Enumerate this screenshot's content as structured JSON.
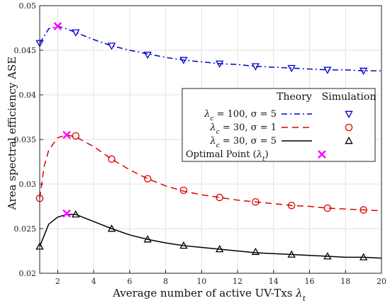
{
  "chart_data": {
    "type": "line",
    "xlabel": "Average number of active UV-Txs λ_t",
    "ylabel": "Area spectral efficiency ASE",
    "xlim": [
      1,
      20
    ],
    "ylim": [
      0.02,
      0.05
    ],
    "xticks": [
      2,
      4,
      6,
      8,
      10,
      12,
      14,
      16,
      18,
      20
    ],
    "yticks": [
      0.02,
      0.025,
      0.03,
      0.035,
      0.04,
      0.045,
      0.05
    ],
    "xtick_labels": [
      "2",
      "4",
      "6",
      "8",
      "10",
      "12",
      "14",
      "16",
      "18",
      "20"
    ],
    "ytick_labels": [
      "0.02",
      "0.025",
      "0.03",
      "0.035",
      "0.04",
      "0.045",
      "0.05"
    ],
    "grid": true,
    "legend_position": "right",
    "legend": {
      "header_theory": "Theory",
      "header_simulation": "Simulation",
      "entries": [
        "λ_c = 100, σ = 5",
        "λ_c = 30, σ = 1",
        "λ_c = 30, σ = 5",
        "Optimal Point (λ_t)"
      ]
    },
    "series": [
      {
        "name": "λ_c = 100, σ = 5",
        "color": "#0000cc",
        "line_style": "dashdot",
        "marker": "triangle-down",
        "theory": {
          "x": [
            1,
            1.5,
            2,
            2.5,
            3,
            4,
            5,
            6,
            7,
            8,
            9,
            10,
            11,
            12,
            13,
            14,
            15,
            16,
            17,
            18,
            19,
            20
          ],
          "y": [
            0.0458,
            0.0474,
            0.0477,
            0.0474,
            0.047,
            0.0462,
            0.0455,
            0.045,
            0.0446,
            0.0442,
            0.0439,
            0.0437,
            0.0435,
            0.0434,
            0.0432,
            0.0431,
            0.043,
            0.0429,
            0.0428,
            0.0428,
            0.0427,
            0.0427
          ]
        },
        "simulation": {
          "x": [
            1,
            3,
            5,
            7,
            9,
            11,
            13,
            15,
            17,
            19
          ],
          "y": [
            0.0458,
            0.047,
            0.0455,
            0.0445,
            0.0439,
            0.0435,
            0.0432,
            0.043,
            0.0428,
            0.0427
          ]
        },
        "optimal": {
          "x": 2,
          "y": 0.0477
        }
      },
      {
        "name": "λ_c = 30, σ = 1",
        "color": "#dd0000",
        "line_style": "dashed",
        "marker": "circle",
        "theory": {
          "x": [
            1,
            1.25,
            1.5,
            2,
            2.5,
            3,
            4,
            5,
            6,
            7,
            8,
            9,
            10,
            11,
            12,
            13,
            14,
            15,
            16,
            17,
            18,
            19,
            20
          ],
          "y": [
            0.0284,
            0.032,
            0.0338,
            0.0352,
            0.0355,
            0.0353,
            0.0342,
            0.0328,
            0.0316,
            0.0306,
            0.0298,
            0.0292,
            0.0288,
            0.0285,
            0.0282,
            0.028,
            0.0278,
            0.0276,
            0.0275,
            0.0273,
            0.0272,
            0.0271,
            0.027
          ]
        },
        "simulation": {
          "x": [
            1,
            3,
            5,
            7,
            9,
            11,
            13,
            15,
            17,
            19
          ],
          "y": [
            0.0284,
            0.0354,
            0.0328,
            0.0306,
            0.0293,
            0.0285,
            0.028,
            0.0276,
            0.0273,
            0.0271
          ]
        },
        "optimal": {
          "x": 2.5,
          "y": 0.0355
        }
      },
      {
        "name": "λ_c = 30, σ = 5",
        "color": "#000000",
        "line_style": "solid",
        "marker": "triangle-up",
        "theory": {
          "x": [
            1,
            1.5,
            2,
            2.5,
            3,
            4,
            5,
            6,
            7,
            8,
            9,
            10,
            11,
            12,
            13,
            14,
            15,
            16,
            17,
            18,
            19,
            20
          ],
          "y": [
            0.023,
            0.0255,
            0.0263,
            0.0266,
            0.0266,
            0.0258,
            0.025,
            0.0243,
            0.0238,
            0.0234,
            0.0231,
            0.0229,
            0.0227,
            0.0225,
            0.0223,
            0.0222,
            0.0221,
            0.022,
            0.0219,
            0.0218,
            0.0218,
            0.0217
          ]
        },
        "simulation": {
          "x": [
            1,
            3,
            5,
            7,
            9,
            11,
            13,
            15,
            17,
            19
          ],
          "y": [
            0.023,
            0.0266,
            0.025,
            0.0238,
            0.0231,
            0.0227,
            0.0224,
            0.0221,
            0.0219,
            0.0218
          ]
        },
        "optimal": {
          "x": 2.5,
          "y": 0.0267
        }
      }
    ],
    "optimal_marker": {
      "color": "#ff00ff",
      "marker": "x"
    }
  }
}
